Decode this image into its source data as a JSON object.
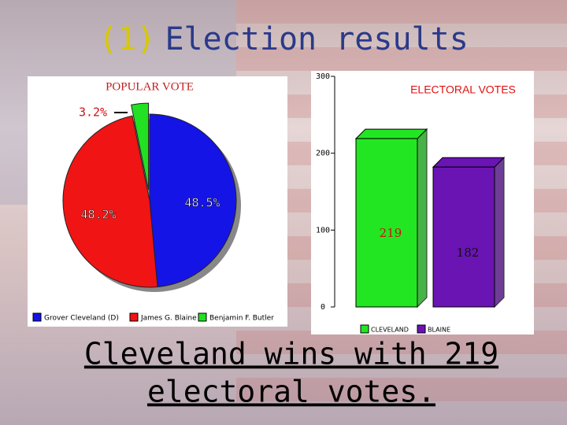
{
  "slide": {
    "title_prefix": "(1)",
    "title": "Election results",
    "caption": [
      "Cleveland wins with 219",
      "electoral votes."
    ]
  },
  "chart_data": [
    {
      "type": "pie",
      "title": "POPULAR VOTE",
      "categories": [
        "Grover Cleveland (D)",
        "James G. Blaine",
        "Benjamin F. Butler"
      ],
      "values": [
        48.5,
        48.2,
        3.2
      ],
      "value_labels": [
        "48.5%",
        "48.2%",
        "3.2%"
      ],
      "colors": [
        "#1414e6",
        "#f01414",
        "#22e022"
      ],
      "legend": "bottom"
    },
    {
      "type": "bar",
      "title": "ELECTORAL VOTES",
      "categories": [
        "CLEVELAND",
        "BLAINE"
      ],
      "values": [
        219,
        182
      ],
      "colors": [
        "#22e622",
        "#6a14b4"
      ],
      "ylim": [
        0,
        300
      ],
      "yticks": [
        0,
        100,
        200,
        300
      ],
      "legend": "bottom"
    }
  ]
}
